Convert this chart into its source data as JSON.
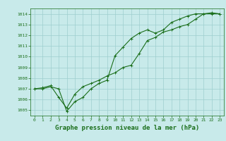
{
  "series1": {
    "x": [
      0,
      1,
      2,
      3,
      4,
      5,
      6,
      7,
      8,
      9,
      10,
      11,
      12,
      13,
      14,
      15,
      16,
      17,
      18,
      19,
      20,
      21,
      22,
      23
    ],
    "y": [
      1007.0,
      1007.0,
      1007.2,
      1007.0,
      1004.9,
      1005.8,
      1006.2,
      1007.0,
      1007.5,
      1007.8,
      1010.1,
      1010.9,
      1011.7,
      1012.2,
      1012.5,
      1012.2,
      1012.5,
      1013.2,
      1013.5,
      1013.8,
      1014.0,
      1014.0,
      1014.0,
      1014.0
    ]
  },
  "series2": {
    "x": [
      0,
      1,
      2,
      3,
      4,
      5,
      6,
      7,
      8,
      9,
      10,
      11,
      12,
      13,
      14,
      15,
      16,
      17,
      18,
      19,
      20,
      21,
      22,
      23
    ],
    "y": [
      1007.0,
      1007.1,
      1007.3,
      1006.2,
      1005.2,
      1006.5,
      1007.2,
      1007.5,
      1007.8,
      1008.2,
      1008.5,
      1009.0,
      1009.2,
      1010.3,
      1011.5,
      1011.8,
      1012.3,
      1012.5,
      1012.8,
      1013.0,
      1013.5,
      1014.0,
      1014.1,
      1014.0
    ]
  },
  "line_color": "#1a6e1a",
  "marker": "+",
  "markersize": 3,
  "linewidth": 0.8,
  "bg_color": "#c8eaea",
  "grid_color": "#9ecece",
  "title": "Graphe pression niveau de la mer (hPa)",
  "xlim": [
    -0.5,
    23.5
  ],
  "ylim": [
    1004.5,
    1014.5
  ],
  "yticks": [
    1005,
    1006,
    1007,
    1008,
    1009,
    1010,
    1011,
    1012,
    1013,
    1014
  ],
  "xticks": [
    0,
    1,
    2,
    3,
    4,
    5,
    6,
    7,
    8,
    9,
    10,
    11,
    12,
    13,
    14,
    15,
    16,
    17,
    18,
    19,
    20,
    21,
    22,
    23
  ],
  "tick_fontsize": 4.5,
  "title_fontsize": 6.5,
  "title_color": "#1a6e1a",
  "tick_color": "#1a6e1a",
  "axis_color": "#1a6e1a",
  "markeredgewidth": 0.7
}
